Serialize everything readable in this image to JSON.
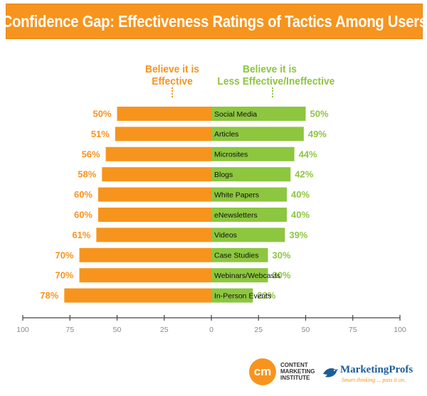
{
  "header": {
    "title": "Confidence Gap: Effectiveness Ratings of Tactics Among Users"
  },
  "colors": {
    "effective": "#f7941d",
    "less_effective": "#8dc63f",
    "axis": "#444444"
  },
  "chart_data": {
    "type": "bar",
    "orientation": "diverging-horizontal",
    "title": "Confidence Gap: Effectiveness Ratings of Tactics Among Users",
    "categories": [
      "Social Media",
      "Articles",
      "Microsites",
      "Blogs",
      "White Papers",
      "eNewsletters",
      "Videos",
      "Case Studies",
      "Webinars/Webcasts",
      "In-Person Events"
    ],
    "series": [
      {
        "name": "Believe it is Effective",
        "side": "left",
        "values": [
          50,
          51,
          56,
          58,
          60,
          60,
          61,
          70,
          70,
          78
        ]
      },
      {
        "name": "Believe it is Less Effective/Ineffective",
        "side": "right",
        "values": [
          50,
          49,
          44,
          42,
          40,
          40,
          39,
          30,
          30,
          22
        ]
      }
    ],
    "value_suffix": "%",
    "x_ticks": [
      {
        "value": -100,
        "label": "100"
      },
      {
        "value": -75,
        "label": "75"
      },
      {
        "value": -50,
        "label": "50"
      },
      {
        "value": -25,
        "label": "25"
      },
      {
        "value": 0,
        "label": "0"
      },
      {
        "value": 25,
        "label": "25"
      },
      {
        "value": 50,
        "label": "50"
      },
      {
        "value": 75,
        "label": "75"
      },
      {
        "value": 100,
        "label": "100"
      }
    ],
    "xlim": [
      -100,
      100
    ],
    "legend": {
      "left": "Believe it is Effective",
      "right": "Believe it is Less Effective/Ineffective"
    }
  },
  "legend_heads": {
    "left_line1": "Believe it is",
    "left_line2": "Effective",
    "right_line1": "Believe it is",
    "right_line2": "Less Effective/Ineffective"
  },
  "footer": {
    "cmi_mark": "cm",
    "cmi_line1": "CONTENT",
    "cmi_line2": "MARKETING",
    "cmi_line3": "INSTITUTE",
    "mp_name": "MarketingProfs",
    "mp_tagline": "Smart thinking ... pass it on."
  }
}
